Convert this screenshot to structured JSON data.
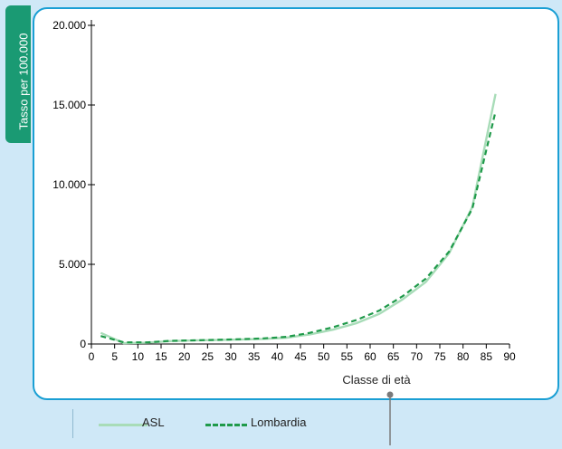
{
  "chart_data": {
    "type": "line",
    "ylabel": "Tasso per 100.000",
    "xlabel": "Classe di età",
    "xlim": [
      0,
      90
    ],
    "ylim": [
      0,
      20000
    ],
    "x_ticks": [
      "0",
      "5",
      "10",
      "15",
      "20",
      "25",
      "30",
      "35",
      "40",
      "45",
      "50",
      "55",
      "60",
      "65",
      "70",
      "75",
      "80",
      "85",
      "90"
    ],
    "y_ticks": [
      "0",
      "5.000",
      "10.000",
      "15.000",
      "20.000"
    ],
    "x": [
      2,
      7,
      12,
      17,
      22,
      27,
      32,
      37,
      42,
      47,
      52,
      57,
      62,
      67,
      72,
      77,
      82,
      87
    ],
    "series": [
      {
        "name": "ASL",
        "color": "#a8dcb8",
        "style": "solid",
        "values": [
          700,
          50,
          80,
          180,
          220,
          250,
          280,
          320,
          400,
          600,
          900,
          1300,
          1900,
          2800,
          3900,
          5700,
          8600,
          15700
        ]
      },
      {
        "name": "Lombardia",
        "color": "#1f9a4a",
        "style": "dashed",
        "values": [
          500,
          100,
          100,
          200,
          230,
          260,
          300,
          350,
          450,
          700,
          1050,
          1500,
          2100,
          3000,
          4100,
          5800,
          8500,
          14600
        ]
      }
    ],
    "legend_position": "bottom"
  },
  "legend": {
    "items": [
      {
        "label": "ASL",
        "color": "#a8dcb8",
        "style": "solid"
      },
      {
        "label": "Lombardia",
        "color": "#1f9a4a",
        "style": "dashed"
      }
    ]
  }
}
